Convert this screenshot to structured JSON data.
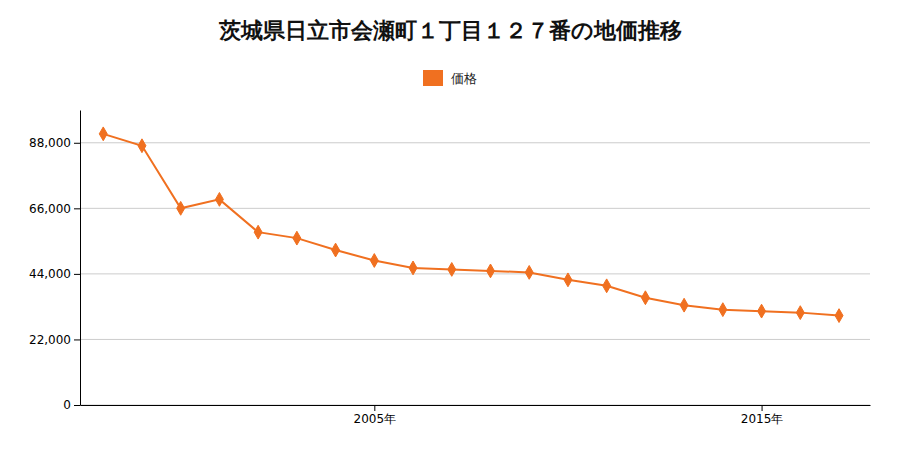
{
  "chart_data": {
    "type": "line",
    "title": "茨城県日立市会瀬町１丁目１２７番の地価推移",
    "x": [
      1998,
      1999,
      2000,
      2001,
      2002,
      2003,
      2004,
      2005,
      2006,
      2007,
      2008,
      2009,
      2010,
      2011,
      2012,
      2013,
      2014,
      2015,
      2016,
      2017
    ],
    "series": [
      {
        "name": "価格",
        "color": "#f07020",
        "marker": "diamond",
        "line_style": "solid",
        "values": [
          91000,
          87000,
          66000,
          69000,
          58000,
          56000,
          52000,
          48500,
          46000,
          45500,
          45000,
          44500,
          42000,
          40000,
          36000,
          33500,
          32000,
          31500,
          31000,
          30000
        ]
      }
    ],
    "xlim": [
      1997.4,
      2017.8
    ],
    "xticks": [
      {
        "value": 2005,
        "label": "2005年"
      },
      {
        "value": 2015,
        "label": "2015年"
      }
    ],
    "ylim": [
      0,
      99000
    ],
    "yticks": [
      0,
      {
        "value": 22000,
        "label": "22,000"
      },
      {
        "value": 44000,
        "label": "44,000"
      },
      {
        "value": 66000,
        "label": "66,000"
      },
      {
        "value": 88000,
        "label": "88,000"
      }
    ],
    "grid": true,
    "legend": "top"
  }
}
